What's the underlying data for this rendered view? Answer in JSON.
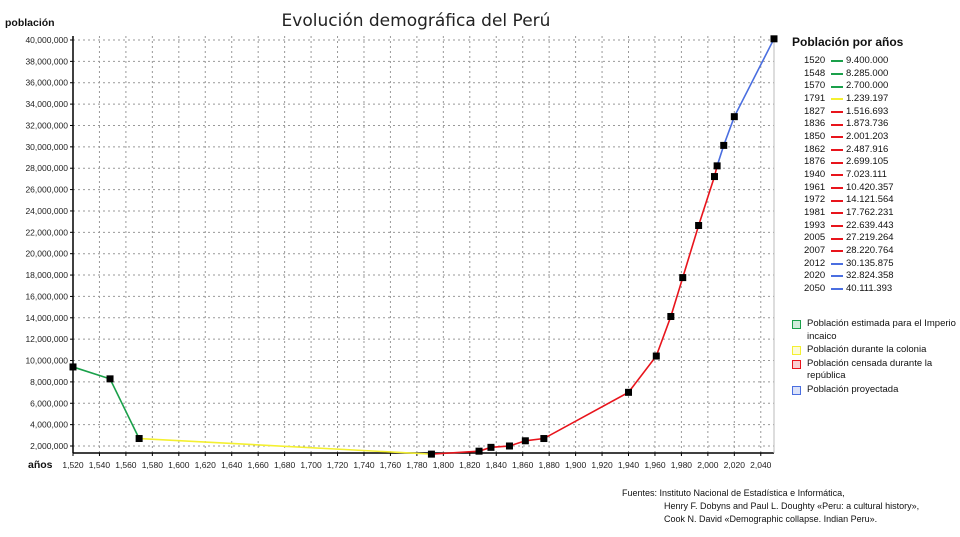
{
  "chart_data": {
    "type": "line",
    "title": "Evolución demográfica del Perú",
    "xlabel": "años",
    "ylabel": "población",
    "xlim": [
      1520,
      2050
    ],
    "ylim": [
      1345000,
      40375000
    ],
    "grid": true,
    "x_ticks": [
      "1,520",
      "1,540",
      "1,560",
      "1,580",
      "1,600",
      "1,620",
      "1,640",
      "1,660",
      "1,680",
      "1,700",
      "1,720",
      "1,740",
      "1,760",
      "1,780",
      "1,800",
      "1,820",
      "1,840",
      "1,860",
      "1,880",
      "1,900",
      "1,920",
      "1,940",
      "1,960",
      "1,980",
      "2,000",
      "2,020",
      "2,040"
    ],
    "y_ticks": [
      "2,000,000",
      "4,000,000",
      "6,000,000",
      "8,000,000",
      "10,000,000",
      "12,000,000",
      "14,000,000",
      "16,000,000",
      "18,000,000",
      "20,000,000",
      "22,000,000",
      "24,000,000",
      "26,000,000",
      "28,000,000",
      "30,000,000",
      "32,000,000",
      "34,000,000",
      "36,000,000",
      "38,000,000",
      "40,000,000"
    ],
    "series": [
      {
        "name": "Población estimada para el Imperio incaico",
        "color": "#1aa04a",
        "x": [
          1520,
          1548,
          1570
        ],
        "y": [
          9400000,
          8285000,
          2700000
        ]
      },
      {
        "name": "Población durante la colonia",
        "color": "#f4f030",
        "x": [
          1570,
          1791
        ],
        "y": [
          2700000,
          1239197
        ]
      },
      {
        "name": "Población censada durante la república",
        "color": "#e8141c",
        "x": [
          1791,
          1827,
          1836,
          1850,
          1862,
          1876,
          1940,
          1961,
          1972,
          1981,
          1993,
          2005,
          2007
        ],
        "y": [
          1239197,
          1516693,
          1873736,
          2001203,
          2487916,
          2699105,
          7023111,
          10420357,
          14121564,
          17762231,
          22639443,
          27219264,
          28220764
        ]
      },
      {
        "name": "Población proyectada",
        "color": "#4a6ee0",
        "x": [
          2007,
          2012,
          2020,
          2050
        ],
        "y": [
          28220764,
          30135875,
          32824358,
          40111393
        ]
      }
    ],
    "legend_placement": "right"
  },
  "legend": {
    "title": "Población por años",
    "rows": [
      {
        "year": "1520",
        "value": "9.400.000",
        "color": "#1aa04a"
      },
      {
        "year": "1548",
        "value": "8.285.000",
        "color": "#1aa04a"
      },
      {
        "year": "1570",
        "value": "2.700.000",
        "color": "#1aa04a"
      },
      {
        "year": "1791",
        "value": "1.239.197",
        "color": "#f4f030"
      },
      {
        "year": "1827",
        "value": "1.516.693",
        "color": "#e8141c"
      },
      {
        "year": "1836",
        "value": "1.873.736",
        "color": "#e8141c"
      },
      {
        "year": "1850",
        "value": "2.001.203",
        "color": "#e8141c"
      },
      {
        "year": "1862",
        "value": "2.487.916",
        "color": "#e8141c"
      },
      {
        "year": "1876",
        "value": "2.699.105",
        "color": "#e8141c"
      },
      {
        "year": "1940",
        "value": "7.023.111",
        "color": "#e8141c"
      },
      {
        "year": "1961",
        "value": "10.420.357",
        "color": "#e8141c"
      },
      {
        "year": "1972",
        "value": "14.121.564",
        "color": "#e8141c"
      },
      {
        "year": "1981",
        "value": "17.762.231",
        "color": "#e8141c"
      },
      {
        "year": "1993",
        "value": "22.639.443",
        "color": "#e8141c"
      },
      {
        "year": "2005",
        "value": "27.219.264",
        "color": "#e8141c"
      },
      {
        "year": "2007",
        "value": "28.220.764",
        "color": "#e8141c"
      },
      {
        "year": "2012",
        "value": "30.135.875",
        "color": "#4a6ee0"
      },
      {
        "year": "2020",
        "value": "32.824.358",
        "color": "#4a6ee0"
      },
      {
        "year": "2050",
        "value": "40.111.393",
        "color": "#4a6ee0"
      }
    ]
  },
  "sources": [
    "Fuentes: Instituto Nacional de Estadística e Informática,",
    "Henry F. Dobyns and Paul L. Doughty «Peru: a cultural history»,",
    "Cook N. David «Demographic collapse. Indian Peru»."
  ]
}
